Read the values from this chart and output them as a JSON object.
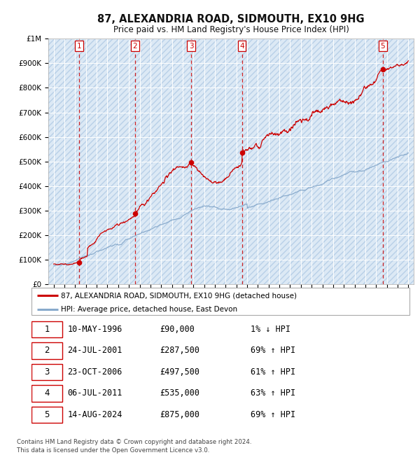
{
  "title": "87, ALEXANDRIA ROAD, SIDMOUTH, EX10 9HG",
  "subtitle": "Price paid vs. HM Land Registry's House Price Index (HPI)",
  "background_color": "#ffffff",
  "chart_bg_color": "#dce9f5",
  "hatch_color": "#b8d0e8",
  "grid_color": "#ffffff",
  "sale_prices": [
    90000,
    287500,
    497500,
    535000,
    875000
  ],
  "sale_labels": [
    "1",
    "2",
    "3",
    "4",
    "5"
  ],
  "sale_years": [
    1996.36,
    2001.56,
    2006.81,
    2011.51,
    2024.62
  ],
  "red_line_color": "#cc0000",
  "blue_line_color": "#88aacc",
  "marker_color": "#cc0000",
  "legend_entries": [
    "87, ALEXANDRIA ROAD, SIDMOUTH, EX10 9HG (detached house)",
    "HPI: Average price, detached house, East Devon"
  ],
  "table_rows": [
    [
      "1",
      "10-MAY-1996",
      "£90,000",
      "1% ↓ HPI"
    ],
    [
      "2",
      "24-JUL-2001",
      "£287,500",
      "69% ↑ HPI"
    ],
    [
      "3",
      "23-OCT-2006",
      "£497,500",
      "61% ↑ HPI"
    ],
    [
      "4",
      "06-JUL-2011",
      "£535,000",
      "63% ↑ HPI"
    ],
    [
      "5",
      "14-AUG-2024",
      "£875,000",
      "69% ↑ HPI"
    ]
  ],
  "footnote": "Contains HM Land Registry data © Crown copyright and database right 2024.\nThis data is licensed under the Open Government Licence v3.0.",
  "ylim": [
    0,
    1000000
  ],
  "yticks": [
    0,
    100000,
    200000,
    300000,
    400000,
    500000,
    600000,
    700000,
    800000,
    900000,
    1000000
  ],
  "ytick_labels": [
    "£0",
    "£100K",
    "£200K",
    "£300K",
    "£400K",
    "£500K",
    "£600K",
    "£700K",
    "£800K",
    "£900K",
    "£1M"
  ],
  "xmin": 1993.5,
  "xmax": 2027.5
}
